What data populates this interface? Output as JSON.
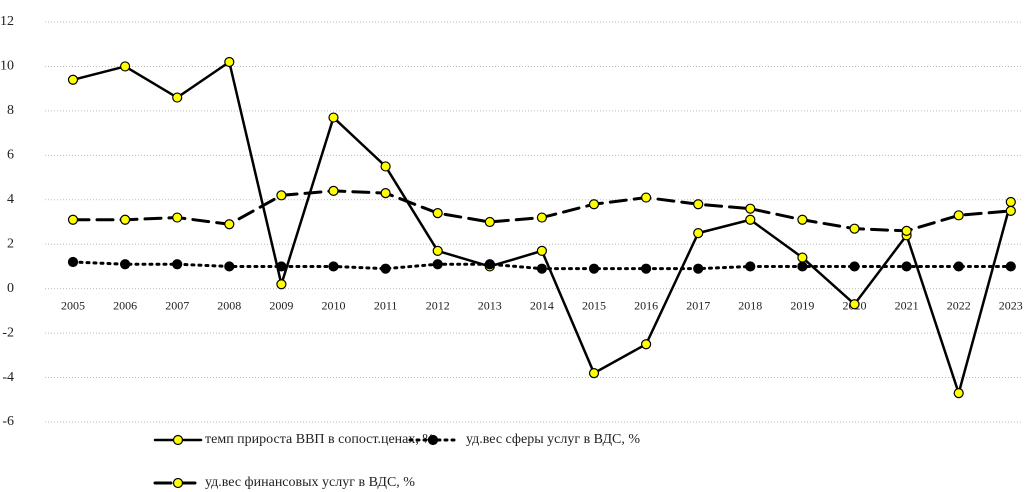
{
  "chart_data": {
    "type": "line",
    "categories": [
      "2005",
      "2006",
      "2007",
      "2008",
      "2009",
      "2010",
      "2011",
      "2012",
      "2013",
      "2014",
      "2015",
      "2016",
      "2017",
      "2018",
      "2019",
      "2020",
      "2021",
      "2022",
      "2023"
    ],
    "series": [
      {
        "name": "темп прироста ВВП  в сопост.ценах, %",
        "color": "#000000",
        "marker_color": "#ffff00",
        "line_style": "solid",
        "values": [
          9.4,
          10.0,
          8.6,
          10.2,
          0.2,
          7.7,
          5.5,
          1.7,
          1.0,
          1.7,
          -3.8,
          -2.5,
          2.5,
          3.1,
          1.4,
          -0.7,
          2.4,
          -4.7,
          3.9
        ]
      },
      {
        "name": "уд.вес сферы услуг в ВДС, %",
        "color": "#000000",
        "marker_color": "#000000",
        "line_style": "dotted",
        "values": [
          1.2,
          1.1,
          1.1,
          1.0,
          1.0,
          1.0,
          0.9,
          1.1,
          1.1,
          0.9,
          0.9,
          0.9,
          0.9,
          1.0,
          1.0,
          1.0,
          1.0,
          1.0,
          1.0
        ]
      },
      {
        "name": "уд.вес финансовых услуг в ВДС, %",
        "color": "#000000",
        "marker_color": "#ffff00",
        "line_style": "dashed",
        "values": [
          3.1,
          3.1,
          3.2,
          2.9,
          4.2,
          4.4,
          4.3,
          3.4,
          3.0,
          3.2,
          3.8,
          4.1,
          3.8,
          3.6,
          3.1,
          2.7,
          2.6,
          3.3,
          3.5
        ]
      }
    ],
    "ylim": [
      -6,
      12
    ],
    "yticks": [
      -6,
      -4,
      -2,
      0,
      2,
      4,
      6,
      8,
      10,
      12
    ],
    "grid": true
  }
}
